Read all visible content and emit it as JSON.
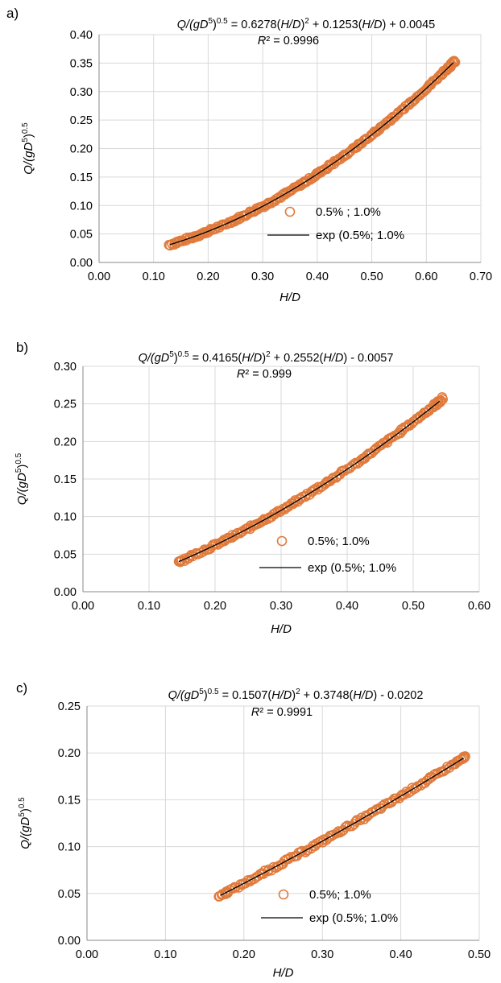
{
  "colors": {
    "marker": "#E07B3C",
    "fit": "#000000",
    "grid": "#d9d9d9"
  },
  "chart_data": [
    {
      "type": "scatter",
      "panel_label": "a)",
      "equation": {
        "lhs_a": "Q/(gD",
        "lhs_b": "5",
        "lhs_c": ")",
        "lhs_d": "0.5",
        "rhs_a": " = 0.6278(",
        "rhs_b": "H/D",
        "rhs_c": ")",
        "rhs_d": "2",
        "rhs_e": " + 0.1253(",
        "rhs_f": "H/D",
        "rhs_g": ") + 0.0045"
      },
      "r2": {
        "a": "R",
        "b": "²",
        "c": " = 0.9996"
      },
      "xlabel": "H/D",
      "ylabel": {
        "a": "Q/(gD",
        "b": "5",
        "c": ")",
        "d": "0.5"
      },
      "xlim": [
        0,
        0.7
      ],
      "ylim": [
        0,
        0.4
      ],
      "xticks": [
        "0.00",
        "0.10",
        "0.20",
        "0.30",
        "0.40",
        "0.50",
        "0.60",
        "0.70"
      ],
      "yticks": [
        "0.00",
        "0.05",
        "0.10",
        "0.15",
        "0.20",
        "0.25",
        "0.30",
        "0.35",
        "0.40"
      ],
      "fit": {
        "a2": 0.6278,
        "a1": 0.1253,
        "a0": 0.0045,
        "x_from": 0.13,
        "x_to": 0.65
      },
      "x_range": [
        0.128,
        0.652
      ],
      "points_x": [
        0.128,
        0.14,
        0.15,
        0.16,
        0.17,
        0.18,
        0.19,
        0.2,
        0.21,
        0.22,
        0.23,
        0.24,
        0.25,
        0.26,
        0.27,
        0.28,
        0.29,
        0.3,
        0.31,
        0.32,
        0.33,
        0.34,
        0.35,
        0.36,
        0.37,
        0.38,
        0.39,
        0.4,
        0.41,
        0.42,
        0.43,
        0.44,
        0.45,
        0.46,
        0.47,
        0.48,
        0.49,
        0.5,
        0.51,
        0.52,
        0.53,
        0.54,
        0.55,
        0.56,
        0.57,
        0.58,
        0.59,
        0.6,
        0.61,
        0.62,
        0.63,
        0.64,
        0.645,
        0.65,
        0.652
      ],
      "legend": {
        "points": "0.5% ; 1.0%",
        "fit": "exp (0.5%; 1.0%"
      }
    },
    {
      "type": "scatter",
      "panel_label": "b)",
      "equation": {
        "lhs_a": "Q/(gD",
        "lhs_b": "5",
        "lhs_c": ")",
        "lhs_d": "0.5",
        "rhs_a": " = 0.4165(",
        "rhs_b": "H/D",
        "rhs_c": ")",
        "rhs_d": "2",
        "rhs_e": " + 0.2552(",
        "rhs_f": "H/D",
        "rhs_g": ") - 0.0057"
      },
      "r2": {
        "a": "R",
        "b": "²",
        "c": " = 0.999"
      },
      "xlabel": "H/D",
      "ylabel": {
        "a": "Q/(gD",
        "b": "5",
        "c": ")",
        "d": "0.5"
      },
      "xlim": [
        0,
        0.6
      ],
      "ylim": [
        0,
        0.3
      ],
      "xticks": [
        "0.00",
        "0.10",
        "0.20",
        "0.30",
        "0.40",
        "0.50",
        "0.60"
      ],
      "yticks": [
        "0.00",
        "0.05",
        "0.10",
        "0.15",
        "0.20",
        "0.25",
        "0.30"
      ],
      "fit": {
        "a2": 0.4165,
        "a1": 0.2552,
        "a0": -0.0057,
        "x_from": 0.145,
        "x_to": 0.54
      },
      "x_range": [
        0.145,
        0.545
      ],
      "points_x": [
        0.145,
        0.15,
        0.16,
        0.17,
        0.18,
        0.19,
        0.2,
        0.21,
        0.22,
        0.23,
        0.24,
        0.25,
        0.26,
        0.27,
        0.28,
        0.29,
        0.3,
        0.31,
        0.32,
        0.33,
        0.34,
        0.35,
        0.36,
        0.37,
        0.38,
        0.39,
        0.4,
        0.41,
        0.42,
        0.43,
        0.44,
        0.45,
        0.46,
        0.47,
        0.48,
        0.49,
        0.5,
        0.51,
        0.52,
        0.53,
        0.535,
        0.54,
        0.545
      ],
      "legend": {
        "points": "0.5%; 1.0%",
        "fit": "exp (0.5%; 1.0%"
      }
    },
    {
      "type": "scatter",
      "panel_label": "c)",
      "equation": {
        "lhs_a": "Q/(gD",
        "lhs_b": "5",
        "lhs_c": ")",
        "lhs_d": "0.5",
        "rhs_a": "  = 0.1507(",
        "rhs_b": "H/D",
        "rhs_c": ")",
        "rhs_d": "2",
        "rhs_e": " + 0.3748(",
        "rhs_f": "H/D",
        "rhs_g": ") - 0.0202"
      },
      "r2": {
        "a": "R",
        "b": "²",
        "c": " = 0.9991"
      },
      "xlabel": "H/D",
      "ylabel": {
        "a": "Q/(gD",
        "b": "5",
        "c": ")",
        "d": "0.5"
      },
      "xlim": [
        0,
        0.5
      ],
      "ylim": [
        0,
        0.25
      ],
      "xticks": [
        "0.00",
        "0.10",
        "0.20",
        "0.30",
        "0.40",
        "0.50"
      ],
      "yticks": [
        "0.00",
        "0.05",
        "0.10",
        "0.15",
        "0.20",
        "0.25"
      ],
      "fit": {
        "a2": 0.1507,
        "a1": 0.3748,
        "a0": -0.0202,
        "x_from": 0.17,
        "x_to": 0.48
      },
      "x_range": [
        0.168,
        0.482
      ],
      "points_x": [
        0.168,
        0.175,
        0.18,
        0.19,
        0.2,
        0.21,
        0.22,
        0.23,
        0.24,
        0.25,
        0.26,
        0.27,
        0.28,
        0.29,
        0.3,
        0.31,
        0.32,
        0.33,
        0.34,
        0.35,
        0.36,
        0.37,
        0.38,
        0.39,
        0.4,
        0.41,
        0.42,
        0.43,
        0.44,
        0.45,
        0.46,
        0.47,
        0.475,
        0.48,
        0.482
      ],
      "legend": {
        "points": "0.5%; 1.0%",
        "fit": "exp (0.5%; 1.0%"
      }
    }
  ]
}
